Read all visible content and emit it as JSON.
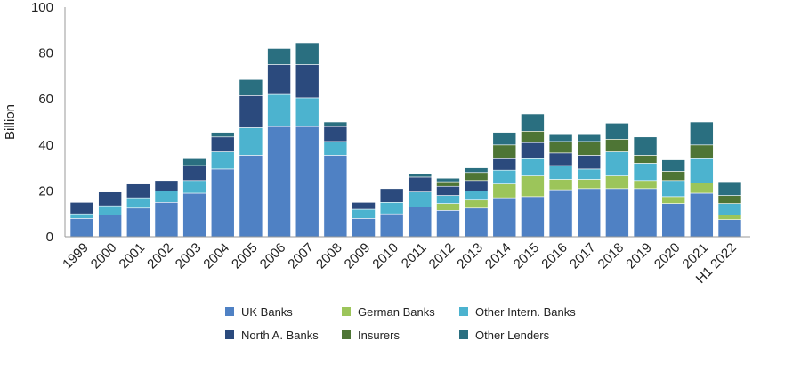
{
  "chart_data": {
    "type": "bar",
    "stacked": true,
    "ylabel": "Billion",
    "ylim": [
      0,
      100
    ],
    "yticks": [
      0,
      20,
      40,
      60,
      80,
      100
    ],
    "grid": false,
    "legend_position": "bottom",
    "categories": [
      "1999",
      "2000",
      "2001",
      "2002",
      "2003",
      "2004",
      "2005",
      "2006",
      "2007",
      "2008",
      "2009",
      "2010",
      "2011",
      "2012",
      "2013",
      "2014",
      "2015",
      "2016",
      "2017",
      "2018",
      "2019",
      "2020",
      "2021",
      "H1 2022"
    ],
    "series": [
      {
        "name": "UK Banks",
        "color": "#4f81c4",
        "values": [
          8,
          9.5,
          12.5,
          15,
          19,
          29.5,
          35.5,
          48,
          48,
          35.5,
          8,
          10,
          13,
          11.5,
          12.5,
          17,
          17.5,
          20.5,
          21,
          21,
          21,
          14.5,
          19,
          7.5
        ]
      },
      {
        "name": "German Banks",
        "color": "#9cc55a",
        "values": [
          0,
          0,
          0,
          0,
          0,
          0,
          0,
          0,
          0,
          0,
          0,
          0,
          0,
          3,
          3.5,
          6,
          9,
          4.5,
          4,
          5.5,
          3.5,
          3,
          4.5,
          2
        ]
      },
      {
        "name": "Other Intern. Banks",
        "color": "#4cb3cf",
        "values": [
          2,
          4,
          4.5,
          5,
          5.5,
          7.5,
          12,
          14,
          12.5,
          6,
          4,
          5,
          6.5,
          3.5,
          4,
          6,
          7.5,
          6,
          4.5,
          10.5,
          7.5,
          7,
          10.5,
          5
        ]
      },
      {
        "name": "North A. Banks",
        "color": "#2b4a7d",
        "values": [
          5,
          6,
          6,
          4.5,
          6.5,
          6.5,
          14,
          13,
          14.5,
          6.5,
          3,
          6,
          6.5,
          4,
          4.5,
          5,
          7,
          5.5,
          6,
          0,
          0,
          0,
          0,
          0
        ]
      },
      {
        "name": "Insurers",
        "color": "#4e7535",
        "values": [
          0,
          0,
          0,
          0,
          0,
          0,
          0,
          0,
          0,
          0,
          0,
          0,
          0,
          2,
          3.5,
          6,
          5,
          5,
          6,
          5.5,
          3.5,
          4,
          6,
          3.5
        ]
      },
      {
        "name": "Other Lenders",
        "color": "#2a6f80",
        "values": [
          0,
          0,
          0,
          0,
          3,
          2,
          7,
          7,
          9.5,
          2,
          0,
          0,
          1.5,
          1.5,
          2,
          5.5,
          7.5,
          3,
          3,
          7,
          8,
          5,
          10,
          6
        ]
      }
    ]
  }
}
